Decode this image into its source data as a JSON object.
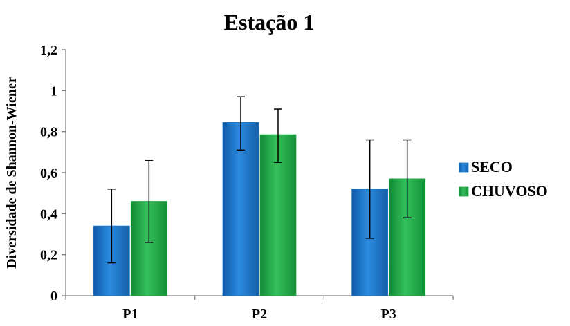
{
  "chart_data": {
    "type": "bar",
    "title": "Estação 1",
    "xlabel": "",
    "ylabel": "Diversidade de Shannon-Wiener",
    "categories": [
      "P1",
      "P2",
      "P3"
    ],
    "ylim": [
      0,
      1.2
    ],
    "yticks": [
      0,
      0.2,
      0.4,
      0.6,
      0.8,
      1,
      1.2
    ],
    "ytick_labels": [
      "0",
      "0,2",
      "0,4",
      "0,6",
      "0,8",
      "1",
      "1,2"
    ],
    "grid": false,
    "legend_position": "right",
    "series": [
      {
        "name": "SECO",
        "values": [
          0.34,
          0.845,
          0.52
        ],
        "error_low": [
          0.16,
          0.71,
          0.28
        ],
        "error_high": [
          0.52,
          0.97,
          0.76
        ],
        "color": "#1f78c8"
      },
      {
        "name": "CHUVOSO",
        "values": [
          0.46,
          0.785,
          0.57
        ],
        "error_low": [
          0.26,
          0.65,
          0.38
        ],
        "error_high": [
          0.66,
          0.91,
          0.76
        ],
        "color": "#22a84a"
      }
    ]
  }
}
